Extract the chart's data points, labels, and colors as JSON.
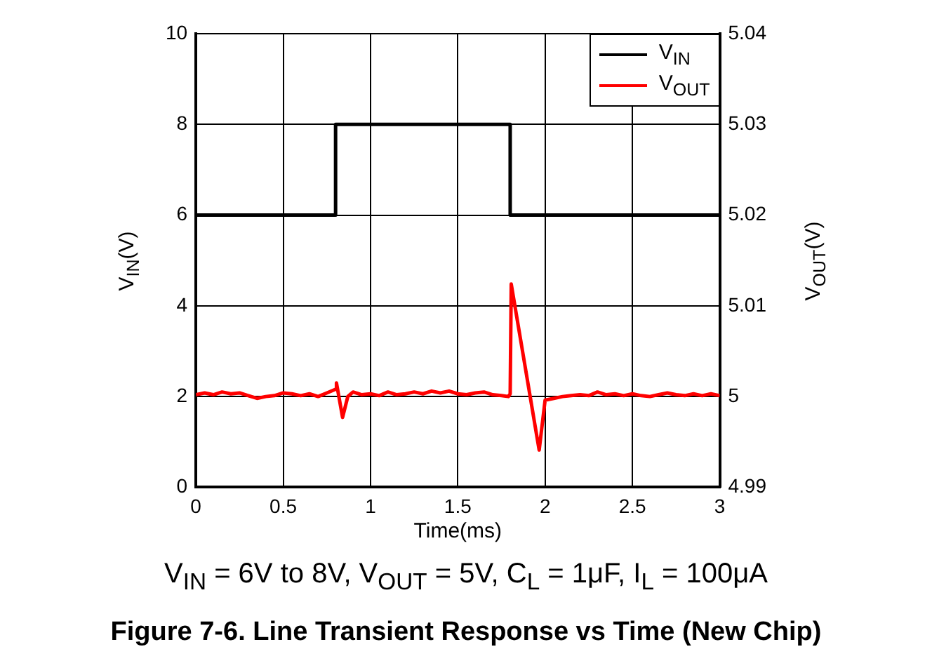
{
  "chart_data": {
    "type": "line",
    "title": "Figure 7-6. Line Transient Response vs Time (New Chip)",
    "xlabel": "Time(ms)",
    "ylabel": "V$_{IN}$(V)",
    "y2label": "V$_{OUT}$(V)",
    "annotations": [
      "V$_{IN}$ = 6V to 8V, V$_{OUT}$ = 5V, C$_{L}$ = 1μF, I$_{L}$ = 100μA"
    ],
    "xlim": [
      0,
      3
    ],
    "xticks": [
      0,
      0.5,
      1,
      1.5,
      2,
      2.5,
      3
    ],
    "ylim": [
      0,
      10
    ],
    "yticks": [
      0,
      2,
      4,
      6,
      8,
      10
    ],
    "y2lim": [
      4.99,
      5.04
    ],
    "y2ticks": [
      4.99,
      5,
      5.01,
      5.02,
      5.03,
      5.04
    ],
    "grid": true,
    "legend": "top right",
    "marker": "none",
    "line_style": "solid",
    "series": [
      {
        "name": "V$_{IN}$",
        "color": "#000000",
        "x": [
          0,
          0.8,
          0.8,
          1.8,
          1.8,
          3
        ],
        "values": [
          6,
          6,
          8,
          8,
          6,
          6
        ]
      },
      {
        "name": "V$_{OUT}$",
        "color": "#ff0000",
        "axis": "y2",
        "x": [
          0,
          0.05,
          0.1,
          0.15,
          0.2,
          0.25,
          0.3,
          0.35,
          0.4,
          0.45,
          0.5,
          0.55,
          0.6,
          0.65,
          0.7,
          0.75,
          0.8,
          0.805,
          0.84,
          0.87,
          0.9,
          0.95,
          1.0,
          1.05,
          1.1,
          1.15,
          1.2,
          1.25,
          1.3,
          1.35,
          1.4,
          1.45,
          1.5,
          1.55,
          1.6,
          1.65,
          1.7,
          1.75,
          1.79,
          1.8,
          1.806,
          1.966,
          2.0,
          2.05,
          2.1,
          2.15,
          2.2,
          2.25,
          2.3,
          2.35,
          2.4,
          2.45,
          2.5,
          2.55,
          2.6,
          2.65,
          2.7,
          2.75,
          2.8,
          2.85,
          2.9,
          2.95,
          3.0
        ],
        "values": [
          5.0002,
          5.0004,
          5.0002,
          5.0005,
          5.0003,
          5.0004,
          5.0001,
          4.9998,
          5.0,
          5.0001,
          5.0004,
          5.0003,
          5.0001,
          5.0003,
          5.0,
          5.0004,
          5.0008,
          5.0015,
          4.9977,
          5.0,
          5.0005,
          5.0002,
          5.0003,
          5.0001,
          5.0005,
          5.0002,
          5.0003,
          5.0005,
          5.0003,
          5.0006,
          5.0004,
          5.0006,
          5.0003,
          5.0002,
          5.0004,
          5.0005,
          5.0002,
          5.0001,
          5.0,
          5.0003,
          5.0124,
          4.9941,
          4.9996,
          4.9998,
          5.0,
          5.0001,
          5.0002,
          5.0001,
          5.0005,
          5.0002,
          5.0003,
          5.0001,
          5.0003,
          5.0001,
          5.0,
          5.0002,
          5.0004,
          5.0002,
          5.0001,
          5.0003,
          5.0001,
          5.0003,
          5.0001
        ]
      }
    ]
  }
}
